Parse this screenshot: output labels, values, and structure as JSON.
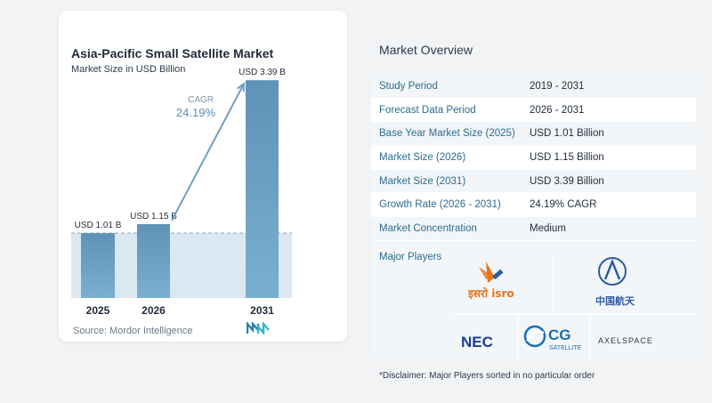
{
  "chart_data": {
    "type": "bar",
    "title": "Asia-Pacific Small Satellite Market",
    "subtitle": "Market Size in USD Billion",
    "categories": [
      "2025",
      "2026",
      "2031"
    ],
    "values": [
      1.01,
      1.15,
      3.39
    ],
    "value_labels": [
      "USD 1.01 B",
      "USD 1.15 B",
      "USD 3.39 B"
    ],
    "cagr_label": "CAGR",
    "cagr_value": "24.19%",
    "ylim": [
      0,
      3.6
    ],
    "grid": false,
    "colors": {
      "bar": "#5e93b8",
      "bar_light": "#79afd0",
      "arrow": "#6a9fc4",
      "shade": "#dce8f1"
    }
  },
  "source": "Source: Mordor Intelligence",
  "overview": {
    "title": "Market Overview",
    "rows": [
      {
        "label": "Study Period",
        "value": "2019 - 2031"
      },
      {
        "label": "Forecast Data Period",
        "value": "2026 - 2031"
      },
      {
        "label": "Base Year Market Size (2025)",
        "value": "USD 1.01 Billion"
      },
      {
        "label": "Market Size (2026)",
        "value": "USD 1.15 Billion"
      },
      {
        "label": "Market Size (2031)",
        "value": "USD 3.39 Billion"
      },
      {
        "label": "Growth Rate (2026 - 2031)",
        "value": "24.19% CAGR"
      },
      {
        "label": "Market Concentration",
        "value": "Medium"
      }
    ],
    "players_label": "Major Players",
    "players": [
      "ISRO",
      "CASC",
      "NEC",
      "CG SATELLITE",
      "AXELSPACE"
    ],
    "logo_text": {
      "isro": "इसरो isro",
      "casc": "中国航天",
      "nec": "NEC",
      "cg": "CG",
      "cg_sub": "SATELLITE",
      "axel": "AXELSPACE"
    },
    "disclaimer": "*Disclaimer: Major Players sorted in no particular order"
  }
}
